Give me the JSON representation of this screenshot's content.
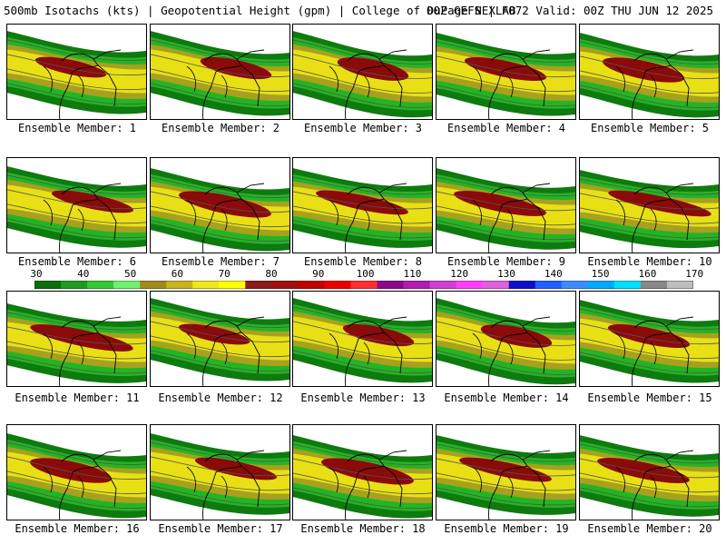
{
  "header": {
    "left": "500mb Isotachs (kts) | Geopotential Height (gpm) | College of DuPage NEXLAB",
    "right": "00Z GEFS | F072 Valid: 00Z THU JUN 12 2025"
  },
  "colorbar": {
    "labels": [
      "30",
      "40",
      "50",
      "60",
      "70",
      "80",
      "90",
      "100",
      "110",
      "120",
      "130",
      "140",
      "150",
      "160",
      "170"
    ],
    "colors": [
      "#0a6f0a",
      "#1f9b1f",
      "#37c837",
      "#6ff06f",
      "#a08a1e",
      "#c8b41e",
      "#f0e61e",
      "#ffff00",
      "#8b1a1a",
      "#a01010",
      "#c00000",
      "#e80000",
      "#ff3030",
      "#8b0a8b",
      "#b020b0",
      "#d040d0",
      "#ff40ff",
      "#e060e0",
      "#1010c8",
      "#2060ff",
      "#3c8cff",
      "#00aaff",
      "#00e0ff",
      "#888888",
      "#bdbdbd"
    ]
  },
  "members": [
    {
      "caption": "Ensemble Member: 1"
    },
    {
      "caption": "Ensemble Member: 2"
    },
    {
      "caption": "Ensemble Member: 3"
    },
    {
      "caption": "Ensemble Member: 4"
    },
    {
      "caption": "Ensemble Member: 5"
    },
    {
      "caption": "Ensemble Member: 6"
    },
    {
      "caption": "Ensemble Member: 7"
    },
    {
      "caption": "Ensemble Member: 8"
    },
    {
      "caption": "Ensemble Member: 9"
    },
    {
      "caption": "Ensemble Member: 10"
    },
    {
      "caption": "Ensemble Member: 11"
    },
    {
      "caption": "Ensemble Member: 12"
    },
    {
      "caption": "Ensemble Member: 13"
    },
    {
      "caption": "Ensemble Member: 14"
    },
    {
      "caption": "Ensemble Member: 15"
    },
    {
      "caption": "Ensemble Member: 16"
    },
    {
      "caption": "Ensemble Member: 17"
    },
    {
      "caption": "Ensemble Member: 18"
    },
    {
      "caption": "Ensemble Member: 19"
    },
    {
      "caption": "Ensemble Member: 20"
    }
  ],
  "colors": {
    "dark_green": "#0f7a0f",
    "green": "#22b522",
    "light_green": "#4ee84e",
    "olive": "#a8a020",
    "yellow": "#e8e014",
    "maroon": "#8b0a0a",
    "outline": "#000000",
    "height_contour": "#555555"
  }
}
